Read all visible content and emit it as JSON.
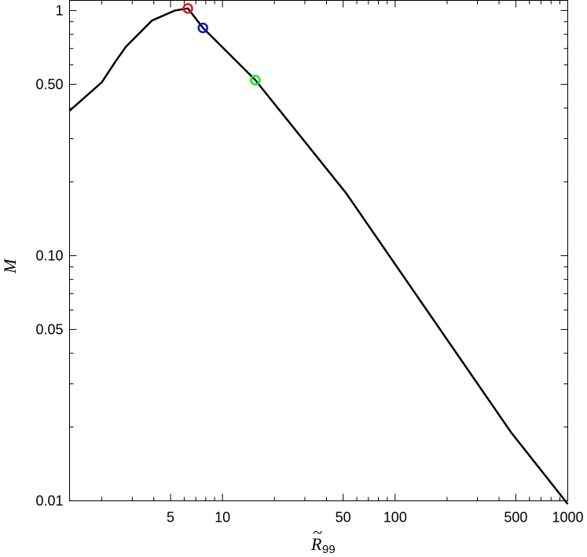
{
  "chart_data": {
    "type": "line",
    "xscale": "log",
    "yscale": "log",
    "xlim": [
      1.3,
      1000
    ],
    "ylim": [
      0.01,
      1.1
    ],
    "xlabel": {
      "base": "R",
      "sub": "99",
      "accent": "~"
    },
    "ylabel": {
      "base": "M",
      "accent": "~"
    },
    "x_ticks": [
      {
        "value": 5,
        "label": "5"
      },
      {
        "value": 10,
        "label": "10"
      },
      {
        "value": 50,
        "label": "50"
      },
      {
        "value": 100,
        "label": "100"
      },
      {
        "value": 500,
        "label": "500"
      },
      {
        "value": 1000,
        "label": "1000"
      }
    ],
    "y_ticks": [
      {
        "value": 0.01,
        "label": "0.01"
      },
      {
        "value": 0.05,
        "label": "0.05"
      },
      {
        "value": 0.1,
        "label": "0.10"
      },
      {
        "value": 0.5,
        "label": "0.50"
      },
      {
        "value": 1,
        "label": "1"
      }
    ],
    "series": [
      {
        "color": "#000000",
        "x": [
          1.3,
          2.0,
          2.4,
          2.75,
          3.9,
          5.3,
          6.3,
          7.7,
          15.5,
          52,
          470,
          1000
        ],
        "y": [
          0.39,
          0.51,
          0.62,
          0.71,
          0.91,
          1.0,
          1.02,
          0.85,
          0.52,
          0.18,
          0.019,
          0.0097
        ]
      }
    ],
    "markers": [
      {
        "x": 6.3,
        "y": 1.02,
        "color": "#e8141e"
      },
      {
        "x": 7.7,
        "y": 0.85,
        "color": "#1414c8"
      },
      {
        "x": 15.5,
        "y": 0.52,
        "color": "#14f014"
      }
    ],
    "grid": false,
    "legend": "none"
  }
}
